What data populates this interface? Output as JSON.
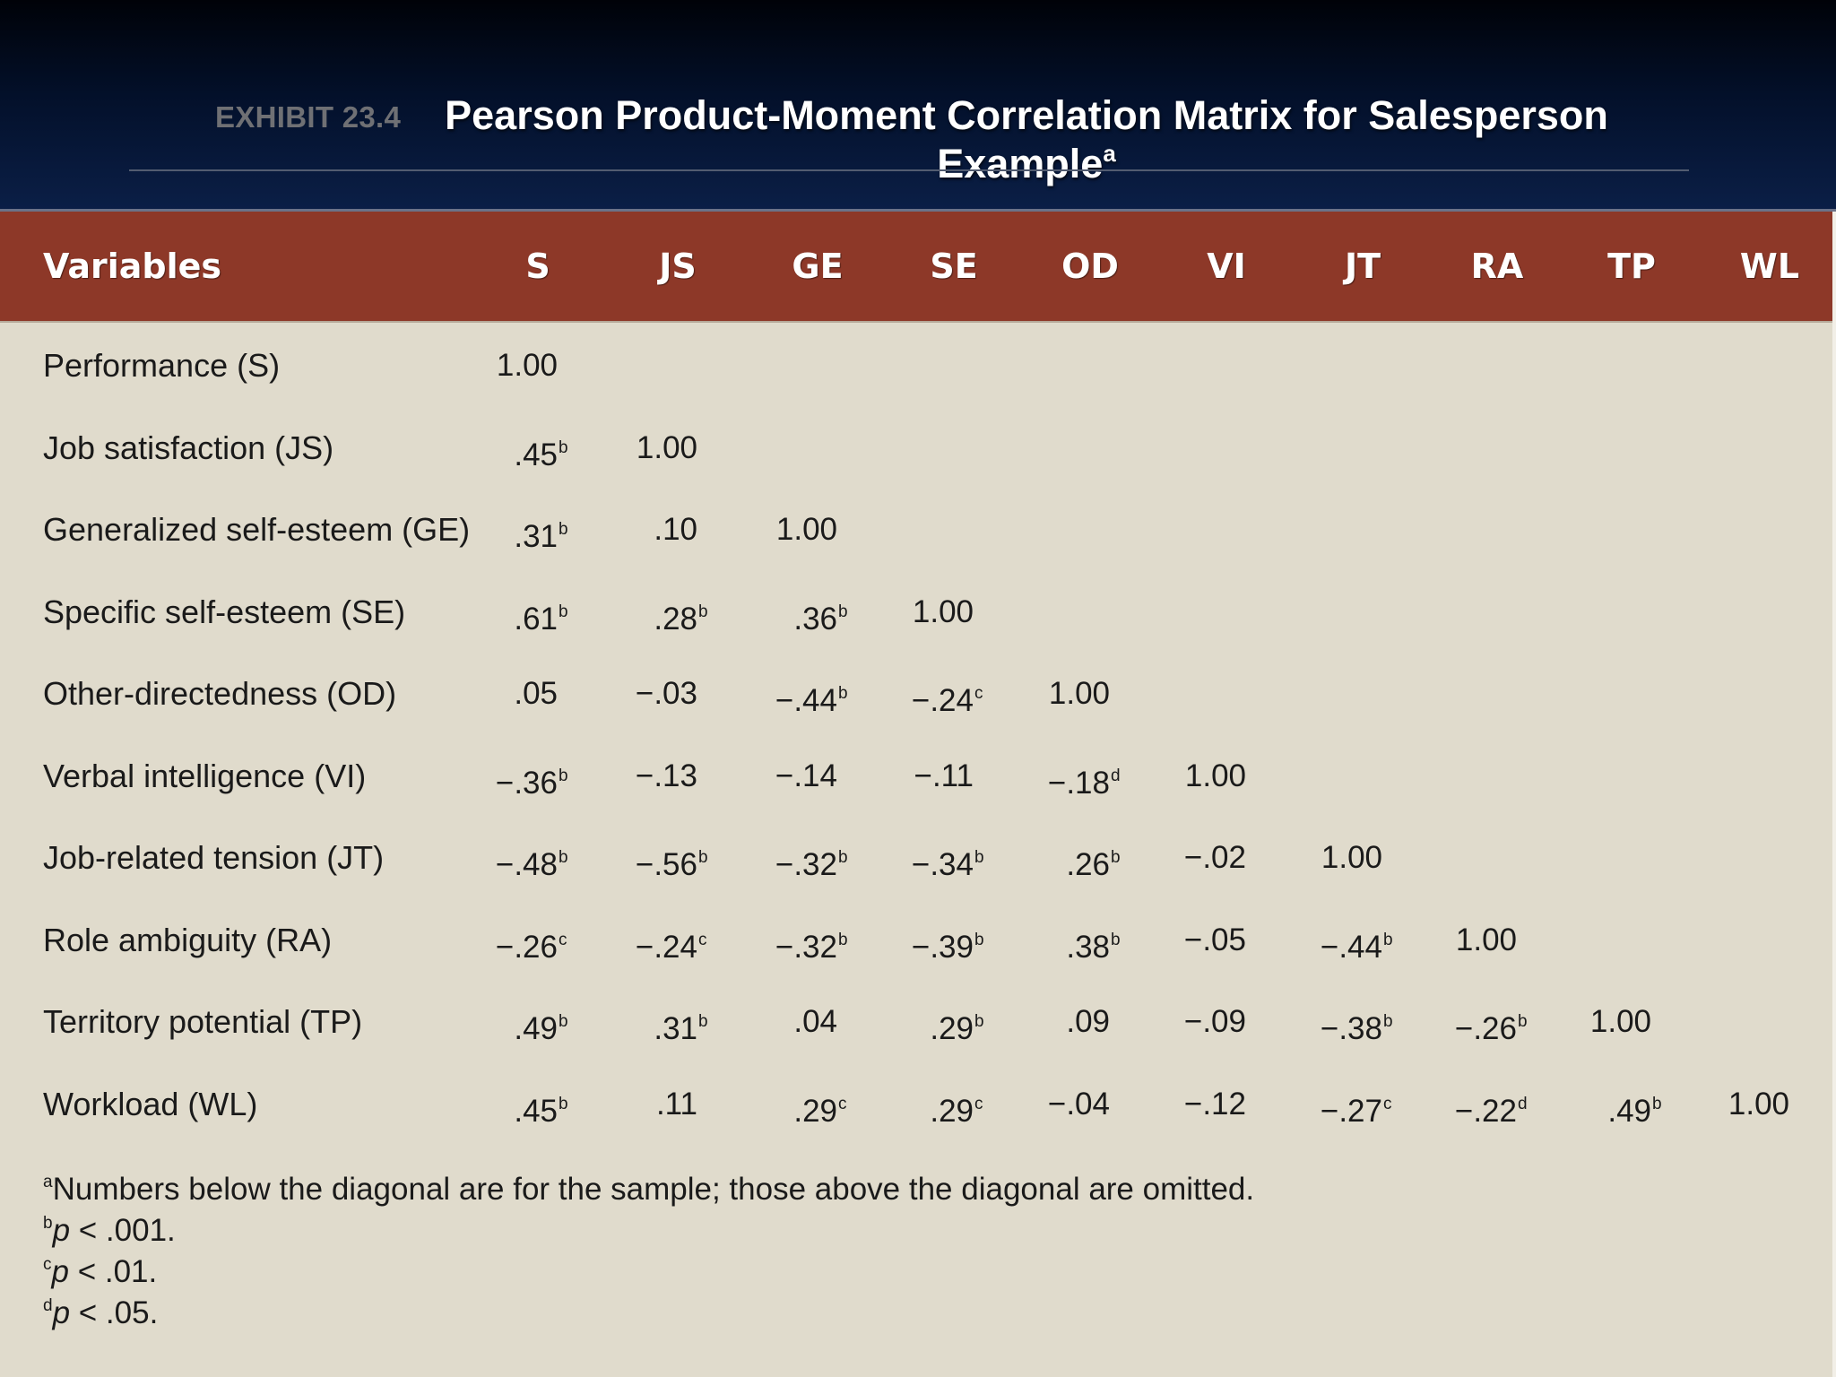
{
  "header": {
    "exhibit": "EXHIBIT 23.4",
    "title": "Pearson Product-Moment Correlation Matrix for Salesperson Example",
    "title_sup": "a"
  },
  "table": {
    "columns": [
      "Variables",
      "S",
      "JS",
      "GE",
      "SE",
      "OD",
      "VI",
      "JT",
      "RA",
      "TP",
      "WL"
    ],
    "rows": [
      {
        "label": "Performance (S)",
        "cells": [
          [
            "1.00",
            ""
          ]
        ]
      },
      {
        "label": "Job satisfaction (JS)",
        "cells": [
          [
            ".45",
            "b"
          ],
          [
            "1.00",
            ""
          ]
        ]
      },
      {
        "label": "Generalized self-esteem (GE)",
        "cells": [
          [
            ".31",
            "b"
          ],
          [
            ".10",
            ""
          ],
          [
            "1.00",
            ""
          ]
        ]
      },
      {
        "label": "Specific self-esteem (SE)",
        "cells": [
          [
            ".61",
            "b"
          ],
          [
            ".28",
            "b"
          ],
          [
            ".36",
            "b"
          ],
          [
            "1.00",
            ""
          ]
        ]
      },
      {
        "label": "Other-directedness (OD)",
        "cells": [
          [
            ".05",
            ""
          ],
          [
            "−.03",
            ""
          ],
          [
            "−.44",
            "b"
          ],
          [
            "−.24",
            "c"
          ],
          [
            "1.00",
            ""
          ]
        ]
      },
      {
        "label": "Verbal intelligence (VI)",
        "cells": [
          [
            "−.36",
            "b"
          ],
          [
            "−.13",
            ""
          ],
          [
            "−.14",
            ""
          ],
          [
            "−.11",
            ""
          ],
          [
            "−.18",
            "d"
          ],
          [
            "1.00",
            ""
          ]
        ]
      },
      {
        "label": "Job-related tension (JT)",
        "cells": [
          [
            "−.48",
            "b"
          ],
          [
            "−.56",
            "b"
          ],
          [
            "−.32",
            "b"
          ],
          [
            "−.34",
            "b"
          ],
          [
            ".26",
            "b"
          ],
          [
            "−.02",
            ""
          ],
          [
            "1.00",
            ""
          ]
        ]
      },
      {
        "label": "Role ambiguity (RA)",
        "cells": [
          [
            "−.26",
            "c"
          ],
          [
            "−.24",
            "c"
          ],
          [
            "−.32",
            "b"
          ],
          [
            "−.39",
            "b"
          ],
          [
            ".38",
            "b"
          ],
          [
            "−.05",
            ""
          ],
          [
            "−.44",
            "b"
          ],
          [
            "1.00",
            ""
          ]
        ]
      },
      {
        "label": "Territory potential (TP)",
        "cells": [
          [
            ".49",
            "b"
          ],
          [
            ".31",
            "b"
          ],
          [
            ".04",
            ""
          ],
          [
            ".29",
            "b"
          ],
          [
            ".09",
            ""
          ],
          [
            "−.09",
            ""
          ],
          [
            "−.38",
            "b"
          ],
          [
            "−.26",
            "b"
          ],
          [
            "1.00",
            ""
          ]
        ]
      },
      {
        "label": "Workload (WL)",
        "cells": [
          [
            ".45",
            "b"
          ],
          [
            ".11",
            ""
          ],
          [
            ".29",
            "c"
          ],
          [
            ".29",
            "c"
          ],
          [
            "−.04",
            ""
          ],
          [
            "−.12",
            ""
          ],
          [
            "−.27",
            "c"
          ],
          [
            "−.22",
            "d"
          ],
          [
            ".49",
            "b"
          ],
          [
            "1.00",
            ""
          ]
        ]
      }
    ]
  },
  "footnotes": [
    {
      "mark": "a",
      "text": "Numbers below the diagonal are for the sample; those above the diagonal are omitted.",
      "italic_p": false
    },
    {
      "mark": "b",
      "text": " < .001.",
      "italic_p": true
    },
    {
      "mark": "c",
      "text": " < .01.",
      "italic_p": true
    },
    {
      "mark": "d",
      "text": " < .05.",
      "italic_p": true
    }
  ],
  "footnote_p": "p",
  "colors": {
    "header_band": "#03102a",
    "table_header": "#8d3828",
    "table_body": "#e0dbcc",
    "exhibit_label": "#6f7074"
  }
}
